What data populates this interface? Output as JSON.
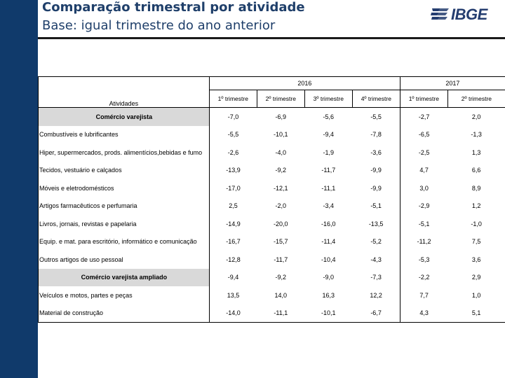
{
  "header": {
    "title": "Comparação trimestral por atividade",
    "subtitle": "Base: igual trimestre do ano anterior",
    "logo_text": "IBGE",
    "colors": {
      "navy": "#103a6b",
      "title": "#1f3f6a",
      "group_bg": "#d9d9d9"
    }
  },
  "table": {
    "activity_header": "Atividades",
    "years": [
      "2016",
      "2017"
    ],
    "quarters": [
      "1º trimestre",
      "2º trimestre",
      "3º trimestre",
      "4º trimestre",
      "1º trimestre",
      "2º trimestre"
    ],
    "rows": [
      {
        "label": "Comércio varejista",
        "group": true,
        "values": [
          "-7,0",
          "-6,9",
          "-5,6",
          "-5,5",
          "-2,7",
          "2,0"
        ]
      },
      {
        "label": "Combustíveis e lubrificantes",
        "group": false,
        "values": [
          "-5,5",
          "-10,1",
          "-9,4",
          "-7,8",
          "-6,5",
          "-1,3"
        ]
      },
      {
        "label": "Hiper, supermercados, prods. alimentícios,bebidas e fumo",
        "group": false,
        "values": [
          "-2,6",
          "-4,0",
          "-1,9",
          "-3,6",
          "-2,5",
          "1,3"
        ]
      },
      {
        "label": "Tecidos, vestuário e calçados",
        "group": false,
        "values": [
          "-13,9",
          "-9,2",
          "-11,7",
          "-9,9",
          "4,7",
          "6,6"
        ]
      },
      {
        "label": "Móveis e eletrodomésticos",
        "group": false,
        "values": [
          "-17,0",
          "-12,1",
          "-11,1",
          "-9,9",
          "3,0",
          "8,9"
        ]
      },
      {
        "label": "Artigos farmacêuticos e perfumaria",
        "group": false,
        "values": [
          "2,5",
          "-2,0",
          "-3,4",
          "-5,1",
          "-2,9",
          "1,2"
        ]
      },
      {
        "label": "Livros, jornais, revistas e papelaria",
        "group": false,
        "values": [
          "-14,9",
          "-20,0",
          "-16,0",
          "-13,5",
          "-5,1",
          "-1,0"
        ]
      },
      {
        "label": "Equip. e mat. para escritório, informático e comunicação",
        "group": false,
        "values": [
          "-16,7",
          "-15,7",
          "-11,4",
          "-5,2",
          "-11,2",
          "7,5"
        ]
      },
      {
        "label": "Outros artigos de uso pessoal",
        "group": false,
        "values": [
          "-12,8",
          "-11,7",
          "-10,4",
          "-4,3",
          "-5,3",
          "3,6"
        ]
      },
      {
        "label": "Comércio varejista ampliado",
        "group": true,
        "values": [
          "-9,4",
          "-9,2",
          "-9,0",
          "-7,3",
          "-2,2",
          "2,9"
        ]
      },
      {
        "label": "Veículos e motos, partes e peças",
        "group": false,
        "values": [
          "13,5",
          "14,0",
          "16,3",
          "12,2",
          "7,7",
          "1,0"
        ]
      },
      {
        "label": "Material de construção",
        "group": false,
        "values": [
          "-14,0",
          "-11,1",
          "-10,1",
          "-6,7",
          "4,3",
          "5,1"
        ]
      }
    ]
  }
}
